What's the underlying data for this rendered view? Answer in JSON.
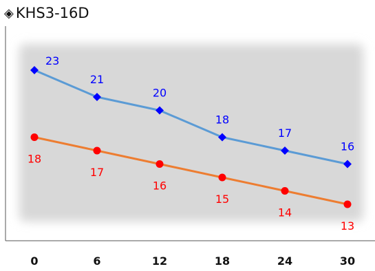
{
  "chart_data": {
    "type": "line",
    "title": "KHS3-16D",
    "title_marker": "◈",
    "xlabel": "",
    "ylabel": "",
    "x": [
      0,
      6,
      12,
      18,
      24,
      30
    ],
    "xlim": [
      0,
      30
    ],
    "ylim": [
      11,
      25
    ],
    "grid": false,
    "legend": "none",
    "plot_background": "#d8d8d8",
    "series": [
      {
        "name": "",
        "color": "#5b9bd5",
        "marker": "diamond",
        "marker_color": "#0000ff",
        "label_color": "#0000ff",
        "label_position": "above",
        "values": [
          23,
          21,
          20,
          18,
          17,
          16
        ]
      },
      {
        "name": "",
        "color": "#ed7d31",
        "marker": "circle",
        "marker_color": "#ff0000",
        "label_color": "#ff0000",
        "label_position": "below",
        "values": [
          18,
          17,
          16,
          15,
          14,
          13
        ]
      }
    ]
  }
}
